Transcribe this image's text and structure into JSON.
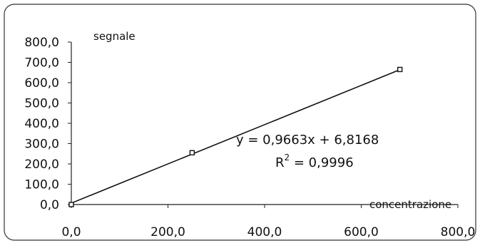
{
  "chart_data": {
    "type": "scatter",
    "title": "",
    "xlabel": "concentrazione",
    "ylabel": "segnale",
    "xlim": [
      0,
      800
    ],
    "ylim": [
      0,
      800
    ],
    "x_ticks": [
      "0,0",
      "200,0",
      "400,0",
      "600,0",
      "800,0"
    ],
    "y_ticks": [
      "0,0",
      "100,0",
      "200,0",
      "300,0",
      "400,0",
      "500,0",
      "600,0",
      "700,0",
      "800,0"
    ],
    "grid": false,
    "series": [
      {
        "points": [
          [
            0,
            0
          ],
          [
            250,
            255
          ],
          [
            680,
            665
          ]
        ]
      }
    ],
    "trendline": {
      "type": "linear",
      "slope": 0.9663,
      "intercept": 6.8168,
      "x_range": [
        0,
        680
      ]
    },
    "annotations": {
      "equation": "y = 0,9663x + 6,8168",
      "r2_prefix": "R",
      "r2_superscript": "2",
      "r2_value": " = 0,9996"
    }
  }
}
